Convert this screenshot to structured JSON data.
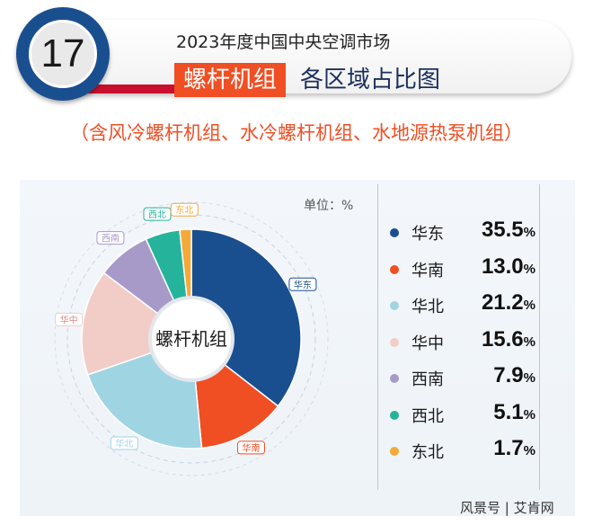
{
  "header": {
    "number": "17",
    "subtitle": "2023年度中国中央空调市场",
    "title_highlight": "螺杆机组",
    "title_rest": "各区域占比图",
    "note": "（含风冷螺杆机组、水冷螺杆机组、水地源热泵机组）"
  },
  "chart_data": {
    "type": "pie",
    "title": "螺杆机组各区域占比图",
    "center_label": "螺杆机组",
    "unit_label": "单位：%",
    "categories": [
      "华东",
      "华南",
      "华北",
      "华中",
      "西南",
      "西北",
      "东北"
    ],
    "values": [
      35.5,
      13.0,
      21.2,
      15.6,
      7.9,
      5.1,
      1.7
    ],
    "labels": [
      "35.5",
      "13.0",
      "21.2",
      "15.6",
      "7.9",
      "5.1",
      "1.7"
    ],
    "percent_sign": "%",
    "colors": [
      "#1a4f8f",
      "#f04e23",
      "#9fd4e3",
      "#f2cdc7",
      "#a79ac8",
      "#26b39b",
      "#f4a938"
    ],
    "legend_position": "right"
  },
  "footer": {
    "source": "风景号 | 艾肯网"
  }
}
